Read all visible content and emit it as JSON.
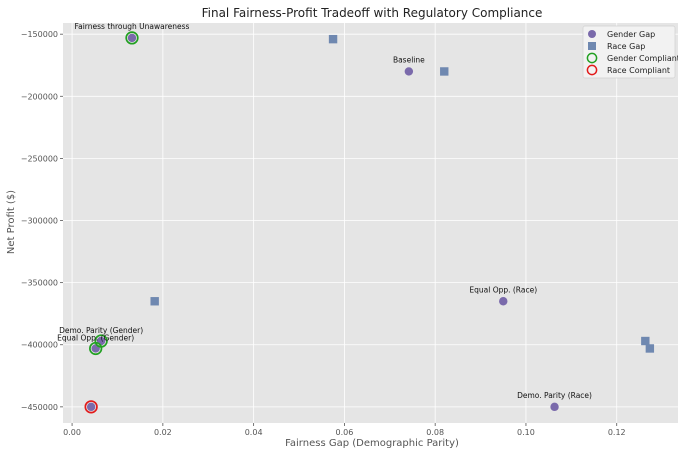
{
  "chart_data": {
    "type": "scatter",
    "title": "Final Fairness-Profit Tradeoff with Regulatory Compliance",
    "xlabel": "Fairness Gap (Demographic Parity)",
    "ylabel": "Net Profit ($)",
    "xlim": [
      -0.002,
      0.1335
    ],
    "ylim": [
      -463000,
      -141000
    ],
    "xticks": [
      0.0,
      0.02,
      0.04,
      0.06,
      0.08,
      0.1,
      0.12
    ],
    "xtick_labels": [
      "0.00",
      "0.02",
      "0.04",
      "0.06",
      "0.08",
      "0.10",
      "0.12"
    ],
    "yticks": [
      -150000,
      -200000,
      -250000,
      -300000,
      -350000,
      -400000,
      -450000
    ],
    "ytick_labels": [
      "−150000",
      "−200000",
      "−250000",
      "−300000",
      "−350000",
      "−400000",
      "−450000"
    ],
    "grid": true,
    "legend_position": "top-right",
    "colors": {
      "background": "#e5e5e5",
      "grid": "#ffffff",
      "gender": "#7a6aab",
      "race": "#6f88b0",
      "gender_compliant": "#22a022",
      "race_compliant": "#e21b1b"
    },
    "series": [
      {
        "name": "Gender Gap",
        "marker": "circle",
        "points": [
          {
            "x": 0.0132,
            "y": -153000
          },
          {
            "x": 0.0742,
            "y": -180000
          },
          {
            "x": 0.095,
            "y": -365000
          },
          {
            "x": 0.0064,
            "y": -397000
          },
          {
            "x": 0.0052,
            "y": -403000
          },
          {
            "x": 0.1063,
            "y": -450000
          },
          {
            "x": 0.0042,
            "y": -450000
          }
        ]
      },
      {
        "name": "Race Gap",
        "marker": "square",
        "points": [
          {
            "x": 0.0575,
            "y": -154000
          },
          {
            "x": 0.082,
            "y": -180000
          },
          {
            "x": 0.0182,
            "y": -365000
          },
          {
            "x": 0.1263,
            "y": -397000
          },
          {
            "x": 0.1273,
            "y": -403000
          }
        ]
      },
      {
        "name": "Gender Compliant",
        "marker": "ring",
        "points": [
          {
            "x": 0.0132,
            "y": -153000
          },
          {
            "x": 0.0064,
            "y": -397000
          },
          {
            "x": 0.0052,
            "y": -403000
          }
        ]
      },
      {
        "name": "Race Compliant",
        "marker": "ring",
        "points": [
          {
            "x": 0.0042,
            "y": -450000
          }
        ]
      }
    ],
    "annotations": [
      {
        "text": "Fairness through Unawareness",
        "x": 0.0132,
        "y": -153000
      },
      {
        "text": "Baseline",
        "x": 0.0742,
        "y": -180000
      },
      {
        "text": "Equal Opp. (Race)",
        "x": 0.095,
        "y": -365000
      },
      {
        "text": "Demo. Parity (Gender)",
        "x": 0.0064,
        "y": -397000
      },
      {
        "text": "Equal Opp. (Gender)",
        "x": 0.0052,
        "y": -403000
      },
      {
        "text": "Demo. Parity (Race)",
        "x": 0.1063,
        "y": -450000
      }
    ]
  }
}
